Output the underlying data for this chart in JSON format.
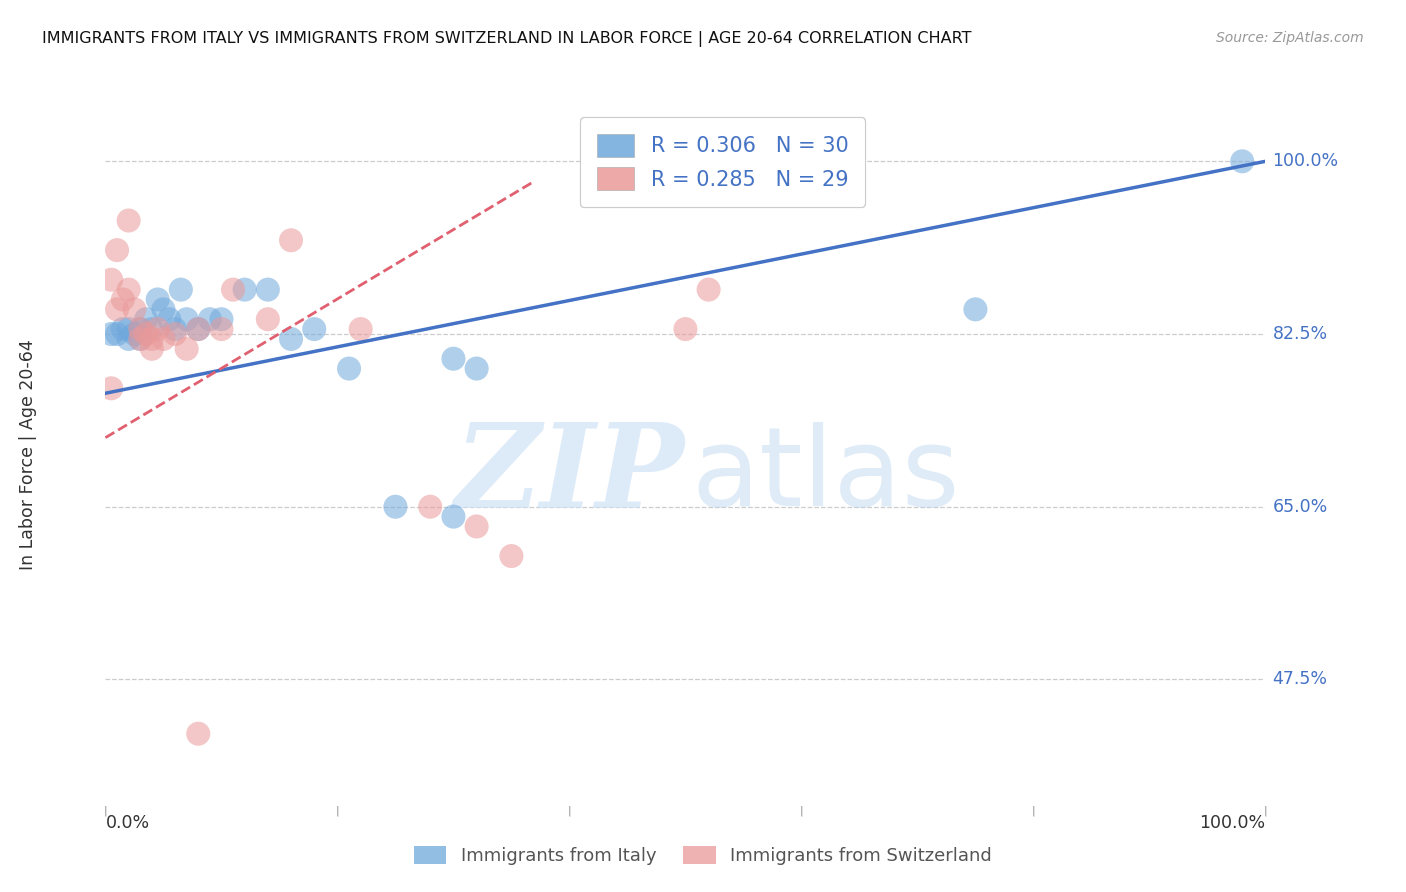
{
  "title": "IMMIGRANTS FROM ITALY VS IMMIGRANTS FROM SWITZERLAND IN LABOR FORCE | AGE 20-64 CORRELATION CHART",
  "source": "Source: ZipAtlas.com",
  "ylabel": "In Labor Force | Age 20-64",
  "ytick_labels": [
    "100.0%",
    "82.5%",
    "65.0%",
    "47.5%"
  ],
  "ytick_values": [
    1.0,
    0.825,
    0.65,
    0.475
  ],
  "xmin": 0.0,
  "xmax": 1.0,
  "ymin": 0.35,
  "ymax": 1.055,
  "legend_italy_r": "0.306",
  "legend_italy_n": "30",
  "legend_swiss_r": "0.285",
  "legend_swiss_n": "29",
  "italy_color": "#6fa8dc",
  "swiss_color": "#ea9999",
  "italy_line_color": "#4472c4",
  "swiss_line_color": "#e06070",
  "italy_x": [
    0.005,
    0.01,
    0.015,
    0.02,
    0.02,
    0.025,
    0.03,
    0.03,
    0.035,
    0.04,
    0.045,
    0.05,
    0.055,
    0.06,
    0.065,
    0.07,
    0.08,
    0.09,
    0.1,
    0.12,
    0.14,
    0.16,
    0.18,
    0.21,
    0.25,
    0.3,
    0.3,
    0.32,
    0.75,
    0.98
  ],
  "italy_y": [
    0.825,
    0.825,
    0.83,
    0.83,
    0.82,
    0.825,
    0.83,
    0.82,
    0.84,
    0.83,
    0.86,
    0.85,
    0.84,
    0.83,
    0.87,
    0.84,
    0.83,
    0.84,
    0.84,
    0.87,
    0.87,
    0.82,
    0.83,
    0.79,
    0.65,
    0.64,
    0.8,
    0.79,
    0.85,
    1.0
  ],
  "swiss_x": [
    0.005,
    0.01,
    0.01,
    0.015,
    0.02,
    0.02,
    0.025,
    0.03,
    0.03,
    0.035,
    0.04,
    0.04,
    0.045,
    0.05,
    0.06,
    0.07,
    0.08,
    0.1,
    0.11,
    0.14,
    0.16,
    0.22,
    0.28,
    0.32,
    0.35,
    0.5,
    0.52,
    0.005,
    0.08
  ],
  "swiss_y": [
    0.88,
    0.91,
    0.85,
    0.86,
    0.94,
    0.87,
    0.85,
    0.83,
    0.82,
    0.825,
    0.82,
    0.81,
    0.83,
    0.82,
    0.825,
    0.81,
    0.83,
    0.83,
    0.87,
    0.84,
    0.92,
    0.83,
    0.65,
    0.63,
    0.6,
    0.83,
    0.87,
    0.77,
    0.42
  ],
  "italy_trendline_x": [
    0.0,
    1.0
  ],
  "italy_trendline_y": [
    0.765,
    1.0
  ],
  "swiss_trendline_x": [
    0.0,
    0.37
  ],
  "swiss_trendline_y": [
    0.72,
    0.98
  ]
}
